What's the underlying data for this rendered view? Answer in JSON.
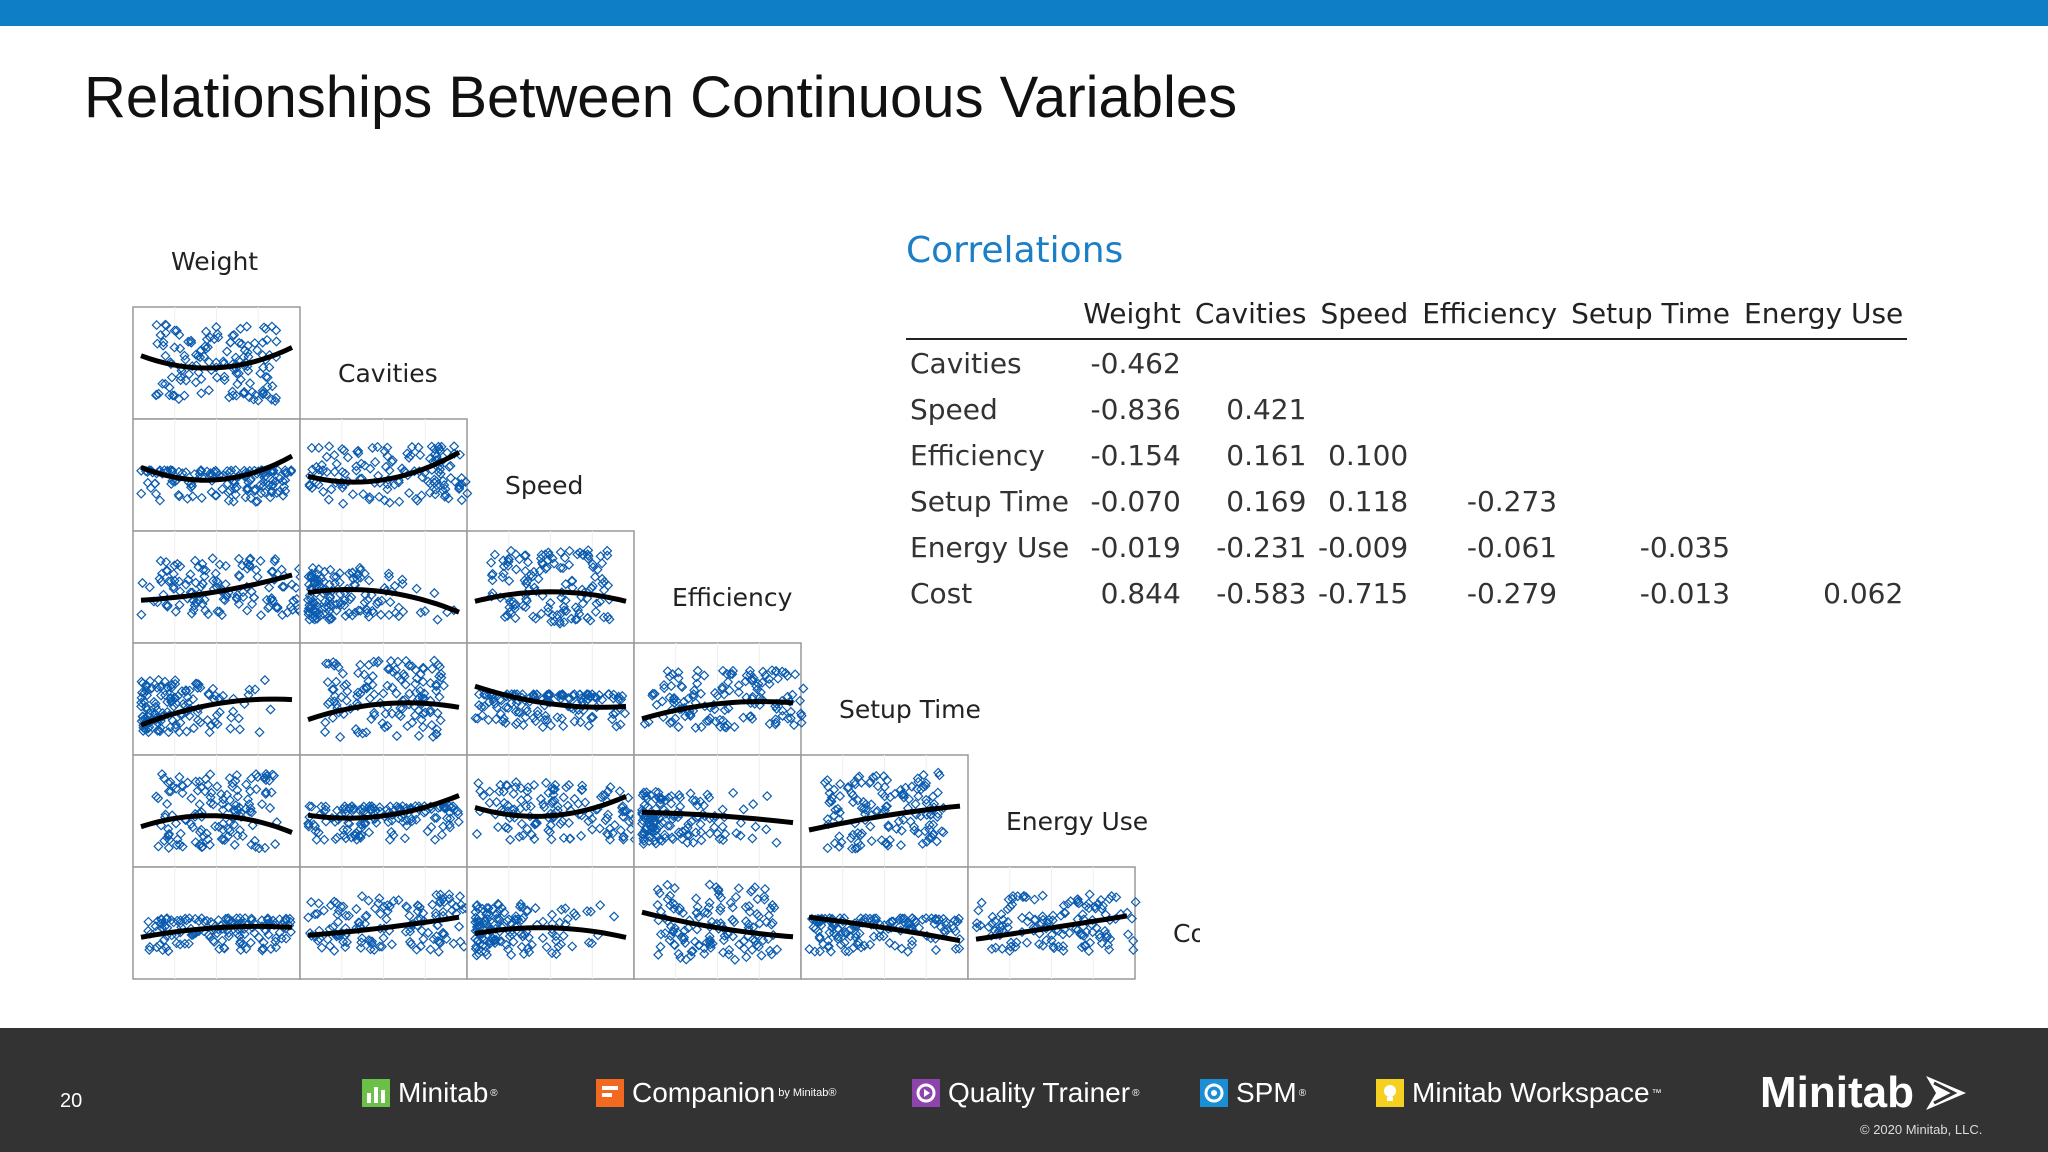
{
  "slide": {
    "title": "Relationships Between Continuous Variables",
    "page_number": "20"
  },
  "colors": {
    "accent": "#0e7fc6",
    "points": "#0b5cb0",
    "footer": "#333333"
  },
  "chart_data": [
    {
      "type": "scatter",
      "variables": [
        "Weight",
        "Cavities",
        "Speed",
        "Efficiency",
        "Setup Time",
        "Energy Use",
        "Cost"
      ],
      "layout": "lower-triangle",
      "fit_line": "smoother"
    },
    {
      "type": "table",
      "title": "Correlations",
      "columns": [
        "",
        "Weight",
        "Cavities",
        "Speed",
        "Efficiency",
        "Setup Time",
        "Energy Use"
      ],
      "rows": [
        {
          "label": "Cavities",
          "values": [
            "-0.462",
            "",
            "",
            "",
            "",
            ""
          ]
        },
        {
          "label": "Speed",
          "values": [
            "-0.836",
            "0.421",
            "",
            "",
            "",
            ""
          ]
        },
        {
          "label": "Efficiency",
          "values": [
            "-0.154",
            "0.161",
            "0.100",
            "",
            "",
            ""
          ]
        },
        {
          "label": "Setup Time",
          "values": [
            "-0.070",
            "0.169",
            "0.118",
            "-0.273",
            "",
            ""
          ]
        },
        {
          "label": "Energy Use",
          "values": [
            "-0.019",
            "-0.231",
            "-0.009",
            "-0.061",
            "-0.035",
            ""
          ]
        },
        {
          "label": "Cost",
          "values": [
            "0.844",
            "-0.583",
            "-0.715",
            "-0.279",
            "-0.013",
            "0.062"
          ]
        }
      ]
    }
  ],
  "footer": {
    "products": [
      {
        "name": "Minitab",
        "mark": "®",
        "icon": "minitab-bars-icon",
        "color": "#6cc04a"
      },
      {
        "name": "Companion",
        "suffix": "by Minitab®",
        "icon": "companion-icon",
        "color": "#f26a21"
      },
      {
        "name": "Quality Trainer",
        "mark": "®",
        "icon": "quality-trainer-icon",
        "color": "#8e44ad"
      },
      {
        "name": "SPM",
        "mark": "®",
        "icon": "spm-icon",
        "color": "#1a8fd6"
      },
      {
        "name": "Minitab Workspace",
        "mark": "™",
        "icon": "workspace-icon",
        "color": "#f5d020"
      }
    ],
    "logo_text": "Minitab",
    "copyright": "© 2020 Minitab, LLC."
  }
}
